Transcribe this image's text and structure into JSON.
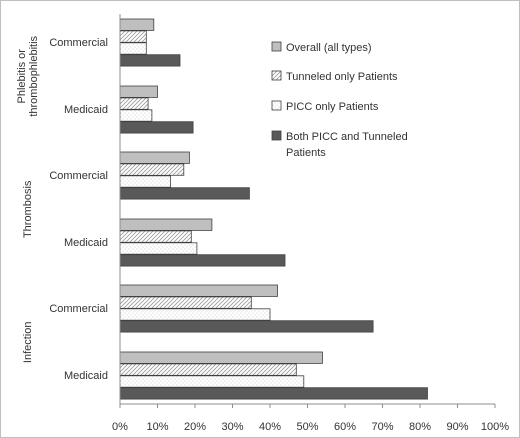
{
  "chart_data": {
    "type": "bar",
    "orientation": "horizontal",
    "xlim": [
      0,
      100
    ],
    "x_ticks": [
      "0%",
      "10%",
      "20%",
      "30%",
      "40%",
      "50%",
      "60%",
      "70%",
      "80%",
      "90%",
      "100%"
    ],
    "grid": false,
    "legend_position": "right",
    "groups": [
      {
        "label": "Phlebitis or thrombophlebitis",
        "label_lines": [
          "Phlebitis or",
          "thrombophlebitis"
        ],
        "categories": [
          {
            "label": "Commercial",
            "values": [
              9,
              7,
              7,
              16
            ]
          },
          {
            "label": "Medicaid",
            "values": [
              10,
              7.5,
              8.5,
              19.5
            ]
          }
        ]
      },
      {
        "label": "Thrombosis",
        "label_lines": [
          "Thrombosis"
        ],
        "categories": [
          {
            "label": "Commercial",
            "values": [
              18.5,
              17,
              13.5,
              34.5
            ]
          },
          {
            "label": "Medicaid",
            "values": [
              24.5,
              19,
              20.5,
              44
            ]
          }
        ]
      },
      {
        "label": "Infection",
        "label_lines": [
          "Infection"
        ],
        "categories": [
          {
            "label": "Commercial",
            "values": [
              42,
              35,
              40,
              67.5
            ]
          },
          {
            "label": "Medicaid",
            "values": [
              54,
              47,
              49,
              82
            ]
          }
        ]
      }
    ],
    "series": [
      {
        "name": "Overall (all  types)",
        "name_lines": [
          "Overall (all  types)"
        ],
        "fill": "#bfbfbf",
        "pattern": "solid"
      },
      {
        "name": "Tunneled only Patients",
        "name_lines": [
          "Tunneled only Patients"
        ],
        "fill": "#ffffff",
        "pattern": "diagonal"
      },
      {
        "name": "PICC only Patients",
        "name_lines": [
          "PICC only Patients"
        ],
        "fill": "#ffffff",
        "pattern": "dotted"
      },
      {
        "name": "Both PICC and Tunneled Patients",
        "name_lines": [
          "Both PICC and Tunneled",
          "Patients"
        ],
        "fill": "#595959",
        "pattern": "solid"
      }
    ]
  }
}
